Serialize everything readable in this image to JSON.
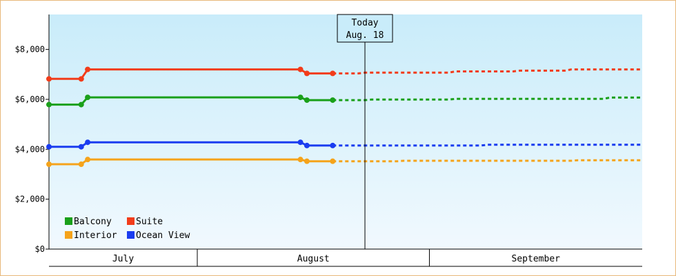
{
  "chart_data": {
    "type": "line",
    "title": "",
    "xlabel": "",
    "ylabel": "",
    "x_start": "2024-06-30",
    "x_end": "2024-09-30",
    "ylim": [
      0,
      9400
    ],
    "y_ticks": [
      0,
      2000,
      4000,
      6000,
      8000
    ],
    "y_tick_labels": [
      "$0",
      "$2,000",
      "$4,000",
      "$6,000",
      "$8,000"
    ],
    "months": [
      {
        "label": "July",
        "start": "2024-06-30",
        "end": "2024-07-23"
      },
      {
        "label": "August",
        "start": "2024-07-23",
        "end": "2024-08-28"
      },
      {
        "label": "September",
        "start": "2024-08-28",
        "end": "2024-09-30"
      }
    ],
    "today": {
      "line1": "Today",
      "line2": "Aug. 18",
      "date": "2024-08-18"
    },
    "legend_position": "bottom-left",
    "grid": false,
    "series": [
      {
        "name": "Suite",
        "color": "#f23c1a",
        "actual": [
          [
            "2024-06-30",
            6820
          ],
          [
            "2024-07-05",
            6820
          ],
          [
            "2024-07-06",
            7200
          ],
          [
            "2024-08-08",
            7200
          ],
          [
            "2024-08-09",
            7040
          ],
          [
            "2024-08-13",
            7040
          ]
        ],
        "forecast": [
          [
            "2024-08-13",
            7040
          ],
          [
            "2024-08-17",
            7040
          ],
          [
            "2024-08-18",
            7070
          ],
          [
            "2024-08-31",
            7070
          ],
          [
            "2024-09-01",
            7120
          ],
          [
            "2024-09-10",
            7120
          ],
          [
            "2024-09-11",
            7150
          ],
          [
            "2024-09-18",
            7150
          ],
          [
            "2024-09-19",
            7200
          ],
          [
            "2024-09-30",
            7200
          ]
        ]
      },
      {
        "name": "Balcony",
        "color": "#1aa01a",
        "actual": [
          [
            "2024-06-30",
            5790
          ],
          [
            "2024-07-05",
            5790
          ],
          [
            "2024-07-06",
            6080
          ],
          [
            "2024-08-08",
            6080
          ],
          [
            "2024-08-09",
            5970
          ],
          [
            "2024-08-13",
            5970
          ]
        ],
        "forecast": [
          [
            "2024-08-13",
            5970
          ],
          [
            "2024-08-18",
            5970
          ],
          [
            "2024-08-19",
            5990
          ],
          [
            "2024-08-31",
            5990
          ],
          [
            "2024-09-01",
            6020
          ],
          [
            "2024-09-24",
            6020
          ],
          [
            "2024-09-25",
            6070
          ],
          [
            "2024-09-30",
            6070
          ]
        ]
      },
      {
        "name": "Ocean View",
        "color": "#1a3cf0",
        "actual": [
          [
            "2024-06-30",
            4100
          ],
          [
            "2024-07-05",
            4100
          ],
          [
            "2024-07-06",
            4280
          ],
          [
            "2024-08-08",
            4280
          ],
          [
            "2024-08-09",
            4150
          ],
          [
            "2024-08-13",
            4150
          ]
        ],
        "forecast": [
          [
            "2024-08-13",
            4150
          ],
          [
            "2024-09-05",
            4150
          ],
          [
            "2024-09-06",
            4180
          ],
          [
            "2024-09-30",
            4180
          ]
        ]
      },
      {
        "name": "Interior",
        "color": "#f5a31a",
        "actual": [
          [
            "2024-06-30",
            3400
          ],
          [
            "2024-07-05",
            3400
          ],
          [
            "2024-07-06",
            3590
          ],
          [
            "2024-08-08",
            3590
          ],
          [
            "2024-08-09",
            3520
          ],
          [
            "2024-08-13",
            3520
          ]
        ],
        "forecast": [
          [
            "2024-08-13",
            3520
          ],
          [
            "2024-08-23",
            3520
          ],
          [
            "2024-08-24",
            3540
          ],
          [
            "2024-09-19",
            3540
          ],
          [
            "2024-09-20",
            3560
          ],
          [
            "2024-09-30",
            3560
          ]
        ]
      }
    ],
    "legend": [
      {
        "name": "Balcony",
        "color": "#1aa01a"
      },
      {
        "name": "Suite",
        "color": "#f23c1a"
      },
      {
        "name": "Interior",
        "color": "#f5a31a"
      },
      {
        "name": "Ocean View",
        "color": "#1a3cf0"
      }
    ]
  }
}
